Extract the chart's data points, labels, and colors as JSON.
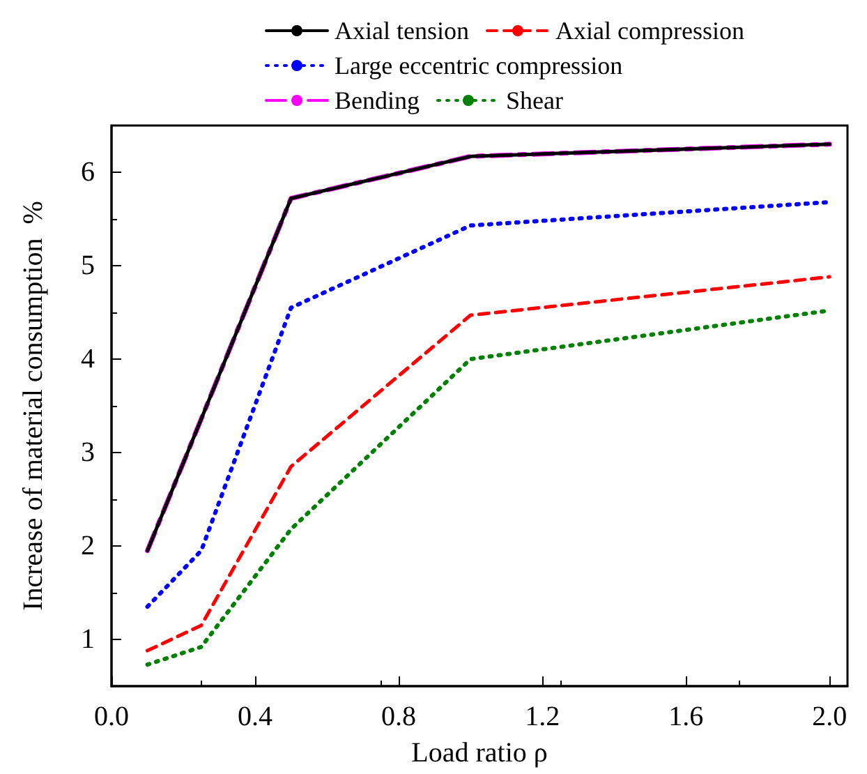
{
  "chart_data": {
    "type": "line",
    "xlabel": "Load ratio ρ",
    "ylabel": "Increase of material consumption  %",
    "x": [
      0.1,
      0.25,
      0.5,
      1.0,
      2.0
    ],
    "xlim": [
      0,
      2.05
    ],
    "xticks": [
      {
        "value": 0,
        "label": "0.0"
      },
      0.4,
      0.8,
      1.2,
      1.6,
      {
        "value": 2,
        "label": "2.0"
      }
    ],
    "ylim": [
      0.5,
      6.5
    ],
    "yticks": [
      1,
      2,
      3,
      4,
      5,
      6
    ],
    "grid": false,
    "legend": "top",
    "marker": "none",
    "series": [
      {
        "name": "Axial tension",
        "color": "#000000",
        "line_style": "solid",
        "values": [
          1.95,
          3.36,
          5.72,
          6.17,
          6.3
        ]
      },
      {
        "name": "Axial compression",
        "color": "#ff0000",
        "line_style": "dashed",
        "values": [
          0.88,
          1.15,
          2.85,
          4.47,
          4.88
        ]
      },
      {
        "name": "Large eccentric compression",
        "color": "#0000ff",
        "line_style": "dotted",
        "values": [
          1.35,
          1.95,
          4.55,
          5.43,
          5.68
        ]
      },
      {
        "name": "Bending",
        "color": "#ff00ff",
        "line_style": "dashed",
        "values": [
          1.95,
          3.36,
          5.72,
          6.17,
          6.3
        ]
      },
      {
        "name": "Shear",
        "color": "#008000",
        "line_style": "dotted",
        "values": [
          0.73,
          0.92,
          2.18,
          4.0,
          4.52
        ]
      }
    ]
  }
}
